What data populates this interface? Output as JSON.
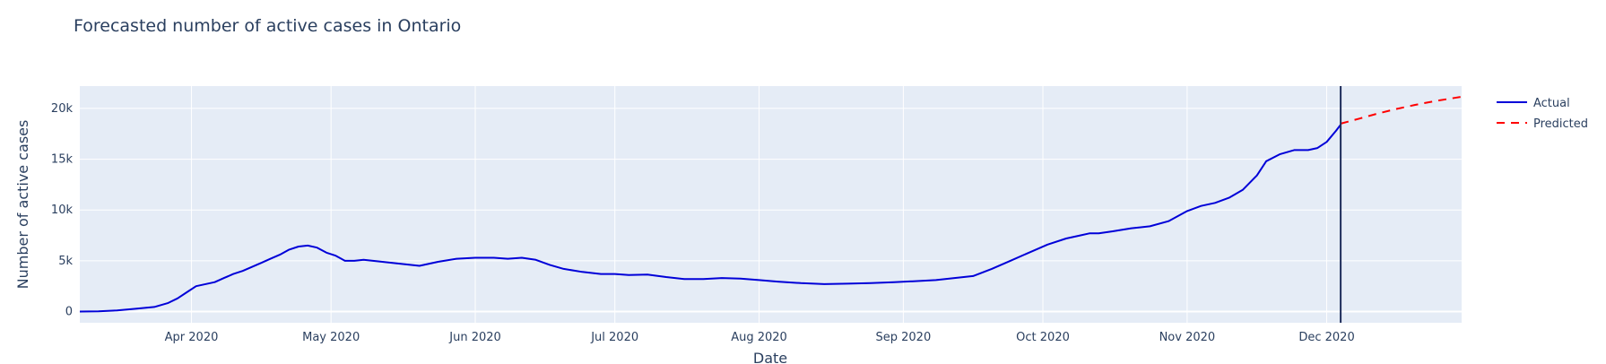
{
  "chart_data": {
    "type": "line",
    "title": "Forecasted number of active cases in Ontario",
    "xlabel": "Date",
    "ylabel": "Number of active cases",
    "x_range": [
      "2020-03-08",
      "2020-12-30"
    ],
    "y_range": [
      -1100,
      22200
    ],
    "x_ticks": [
      {
        "date": "2020-04-01",
        "label": "Apr 2020"
      },
      {
        "date": "2020-05-01",
        "label": "May 2020"
      },
      {
        "date": "2020-06-01",
        "label": "Jun 2020"
      },
      {
        "date": "2020-07-01",
        "label": "Jul 2020"
      },
      {
        "date": "2020-08-01",
        "label": "Aug 2020"
      },
      {
        "date": "2020-09-01",
        "label": "Sep 2020"
      },
      {
        "date": "2020-10-01",
        "label": "Oct 2020"
      },
      {
        "date": "2020-11-01",
        "label": "Nov 2020"
      },
      {
        "date": "2020-12-01",
        "label": "Dec 2020"
      }
    ],
    "y_ticks": [
      {
        "value": 0,
        "label": "0"
      },
      {
        "value": 5000,
        "label": "5k"
      },
      {
        "value": 10000,
        "label": "10k"
      },
      {
        "value": 15000,
        "label": "15k"
      },
      {
        "value": 20000,
        "label": "20k"
      }
    ],
    "grid": true,
    "legend_position": "top-right",
    "vline": {
      "date": "2020-12-04",
      "color": "#1f2d5a"
    },
    "series": [
      {
        "name": "Actual",
        "color": "#0000d8",
        "dash": "solid",
        "x": [
          "2020-03-08",
          "2020-03-12",
          "2020-03-16",
          "2020-03-20",
          "2020-03-24",
          "2020-03-27",
          "2020-03-29",
          "2020-03-31",
          "2020-04-02",
          "2020-04-06",
          "2020-04-08",
          "2020-04-10",
          "2020-04-12",
          "2020-04-14",
          "2020-04-16",
          "2020-04-18",
          "2020-04-20",
          "2020-04-22",
          "2020-04-24",
          "2020-04-26",
          "2020-04-28",
          "2020-04-30",
          "2020-05-02",
          "2020-05-04",
          "2020-05-06",
          "2020-05-08",
          "2020-05-12",
          "2020-05-16",
          "2020-05-20",
          "2020-05-24",
          "2020-05-28",
          "2020-06-01",
          "2020-06-05",
          "2020-06-08",
          "2020-06-11",
          "2020-06-14",
          "2020-06-17",
          "2020-06-20",
          "2020-06-24",
          "2020-06-28",
          "2020-07-01",
          "2020-07-04",
          "2020-07-08",
          "2020-07-12",
          "2020-07-16",
          "2020-07-20",
          "2020-07-24",
          "2020-07-28",
          "2020-08-01",
          "2020-08-05",
          "2020-08-10",
          "2020-08-15",
          "2020-08-20",
          "2020-08-25",
          "2020-08-30",
          "2020-09-04",
          "2020-09-08",
          "2020-09-12",
          "2020-09-16",
          "2020-09-20",
          "2020-09-24",
          "2020-09-28",
          "2020-10-02",
          "2020-10-06",
          "2020-10-09",
          "2020-10-11",
          "2020-10-13",
          "2020-10-16",
          "2020-10-20",
          "2020-10-24",
          "2020-10-28",
          "2020-11-01",
          "2020-11-04",
          "2020-11-07",
          "2020-11-10",
          "2020-11-13",
          "2020-11-16",
          "2020-11-18",
          "2020-11-21",
          "2020-11-24",
          "2020-11-27",
          "2020-11-29",
          "2020-12-01",
          "2020-12-03",
          "2020-12-04"
        ],
        "y": [
          0,
          30,
          120,
          280,
          450,
          850,
          1300,
          1900,
          2500,
          2900,
          3300,
          3700,
          4000,
          4400,
          4800,
          5200,
          5600,
          6100,
          6400,
          6500,
          6300,
          5800,
          5500,
          5000,
          5000,
          5100,
          4900,
          4700,
          4500,
          4900,
          5200,
          5300,
          5300,
          5200,
          5300,
          5100,
          4600,
          4200,
          3900,
          3700,
          3700,
          3600,
          3650,
          3400,
          3200,
          3200,
          3300,
          3250,
          3100,
          2950,
          2800,
          2700,
          2750,
          2800,
          2900,
          3000,
          3100,
          3300,
          3500,
          4200,
          5000,
          5800,
          6600,
          7200,
          7500,
          7700,
          7700,
          7900,
          8200,
          8400,
          8900,
          9900,
          10400,
          10700,
          11200,
          12000,
          13400,
          14800,
          15500,
          15900,
          15900,
          16100,
          16700,
          17800,
          18400
        ]
      },
      {
        "name": "Predicted",
        "color": "#ff0000",
        "dash": "dashed",
        "x": [
          "2020-12-04",
          "2020-12-08",
          "2020-12-12",
          "2020-12-16",
          "2020-12-20",
          "2020-12-24",
          "2020-12-28",
          "2020-12-30"
        ],
        "y": [
          18500,
          19000,
          19500,
          19950,
          20350,
          20700,
          21000,
          21150
        ]
      }
    ]
  }
}
